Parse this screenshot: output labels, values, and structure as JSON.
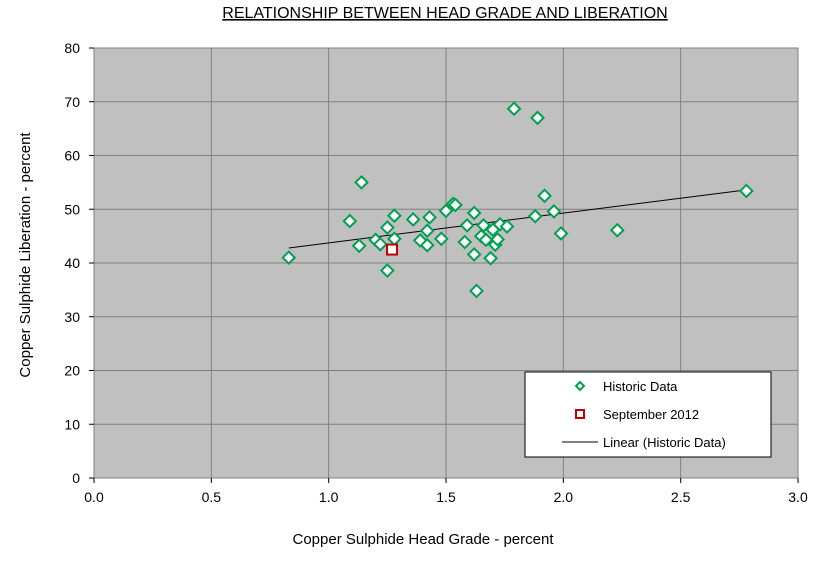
{
  "chart_data": {
    "type": "scatter",
    "title": "RELATIONSHIP BETWEEN HEAD GRADE AND LIBERATION",
    "xlabel": "Copper Sulphide Head Grade  - percent",
    "ylabel": "Copper Sulphide Liberation  - percent",
    "xlim": [
      0,
      3
    ],
    "ylim": [
      0,
      80
    ],
    "x_ticks": [
      "0.0",
      "0.5",
      "1.0",
      "1.5",
      "2.0",
      "2.5",
      "3.0"
    ],
    "x_tick_values": [
      0,
      0.5,
      1.0,
      1.5,
      2.0,
      2.5,
      3.0
    ],
    "y_ticks": [
      "0",
      "10",
      "20",
      "30",
      "40",
      "50",
      "60",
      "70",
      "80"
    ],
    "y_tick_values": [
      0,
      10,
      20,
      30,
      40,
      50,
      60,
      70,
      80
    ],
    "grid": true,
    "legend_position": "bottom-right",
    "colors": {
      "plot_background": "#c0c0c0",
      "grid": "#808080",
      "historic": "#00a050",
      "september": "#c00000",
      "trend": "#000000"
    },
    "series": [
      {
        "name": "Historic Data",
        "marker": "diamond",
        "points": [
          [
            0.83,
            41.0
          ],
          [
            1.09,
            47.8
          ],
          [
            1.13,
            43.2
          ],
          [
            1.14,
            55.0
          ],
          [
            1.2,
            44.3
          ],
          [
            1.22,
            43.5
          ],
          [
            1.25,
            46.6
          ],
          [
            1.25,
            38.6
          ],
          [
            1.28,
            48.8
          ],
          [
            1.28,
            44.5
          ],
          [
            1.36,
            48.1
          ],
          [
            1.39,
            44.2
          ],
          [
            1.42,
            46.0
          ],
          [
            1.42,
            43.3
          ],
          [
            1.43,
            48.5
          ],
          [
            1.48,
            44.5
          ],
          [
            1.5,
            49.7
          ],
          [
            1.53,
            51.0
          ],
          [
            1.54,
            50.8
          ],
          [
            1.58,
            43.9
          ],
          [
            1.59,
            47.0
          ],
          [
            1.62,
            49.3
          ],
          [
            1.62,
            41.6
          ],
          [
            1.63,
            34.8
          ],
          [
            1.65,
            45.0
          ],
          [
            1.66,
            47.0
          ],
          [
            1.67,
            44.3
          ],
          [
            1.69,
            40.9
          ],
          [
            1.7,
            46.2
          ],
          [
            1.71,
            43.4
          ],
          [
            1.72,
            44.4
          ],
          [
            1.73,
            47.2
          ],
          [
            1.76,
            46.8
          ],
          [
            1.79,
            68.7
          ],
          [
            1.88,
            48.7
          ],
          [
            1.89,
            67.0
          ],
          [
            1.92,
            52.5
          ],
          [
            1.96,
            49.6
          ],
          [
            1.99,
            45.5
          ],
          [
            2.23,
            46.1
          ],
          [
            2.78,
            53.4
          ]
        ]
      },
      {
        "name": "September 2012",
        "marker": "square",
        "points": [
          [
            1.27,
            42.5
          ]
        ]
      },
      {
        "name": "Linear (Historic Data)",
        "type": "line",
        "points": [
          [
            0.83,
            42.8
          ],
          [
            2.78,
            53.6
          ]
        ]
      }
    ]
  }
}
